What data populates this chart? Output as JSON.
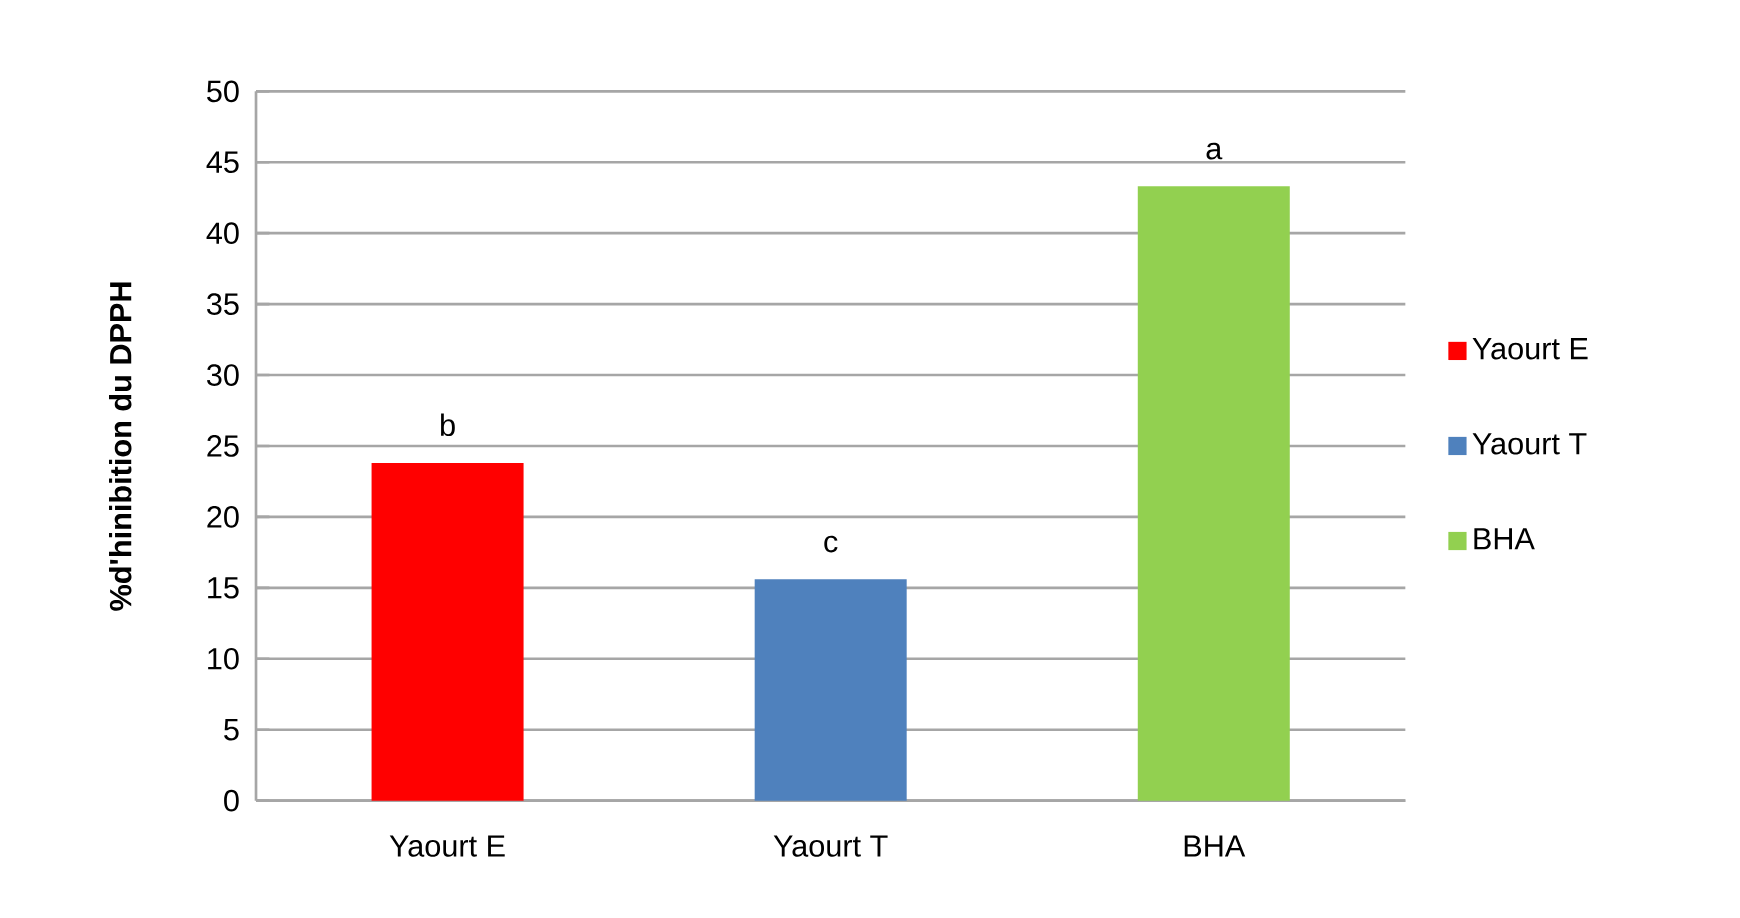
{
  "chart_data": {
    "type": "bar",
    "ylabel": "%d'hinibition du DPPH",
    "categories": [
      "Yaourt E",
      "Yaourt T",
      "BHA"
    ],
    "series": [
      {
        "name": "Yaourt E",
        "color": "#ff0000",
        "values": [
          23.8,
          null,
          null
        ]
      },
      {
        "name": "Yaourt T",
        "color": "#4f81bd",
        "values": [
          null,
          15.6,
          null
        ]
      },
      {
        "name": "BHA",
        "color": "#92d050",
        "values": [
          null,
          null,
          43.3
        ]
      }
    ],
    "ylim": [
      0,
      50
    ],
    "yticks": [
      0,
      5,
      10,
      15,
      20,
      25,
      30,
      35,
      40,
      45,
      50
    ],
    "grid": "y",
    "legend": "right",
    "annotations": [
      {
        "text": "b",
        "x": "Yaourt E",
        "y": 23.8
      },
      {
        "text": "c",
        "x": "Yaourt T",
        "y": 15.6
      },
      {
        "text": "a",
        "x": "BHA",
        "y": 43.3
      }
    ]
  }
}
